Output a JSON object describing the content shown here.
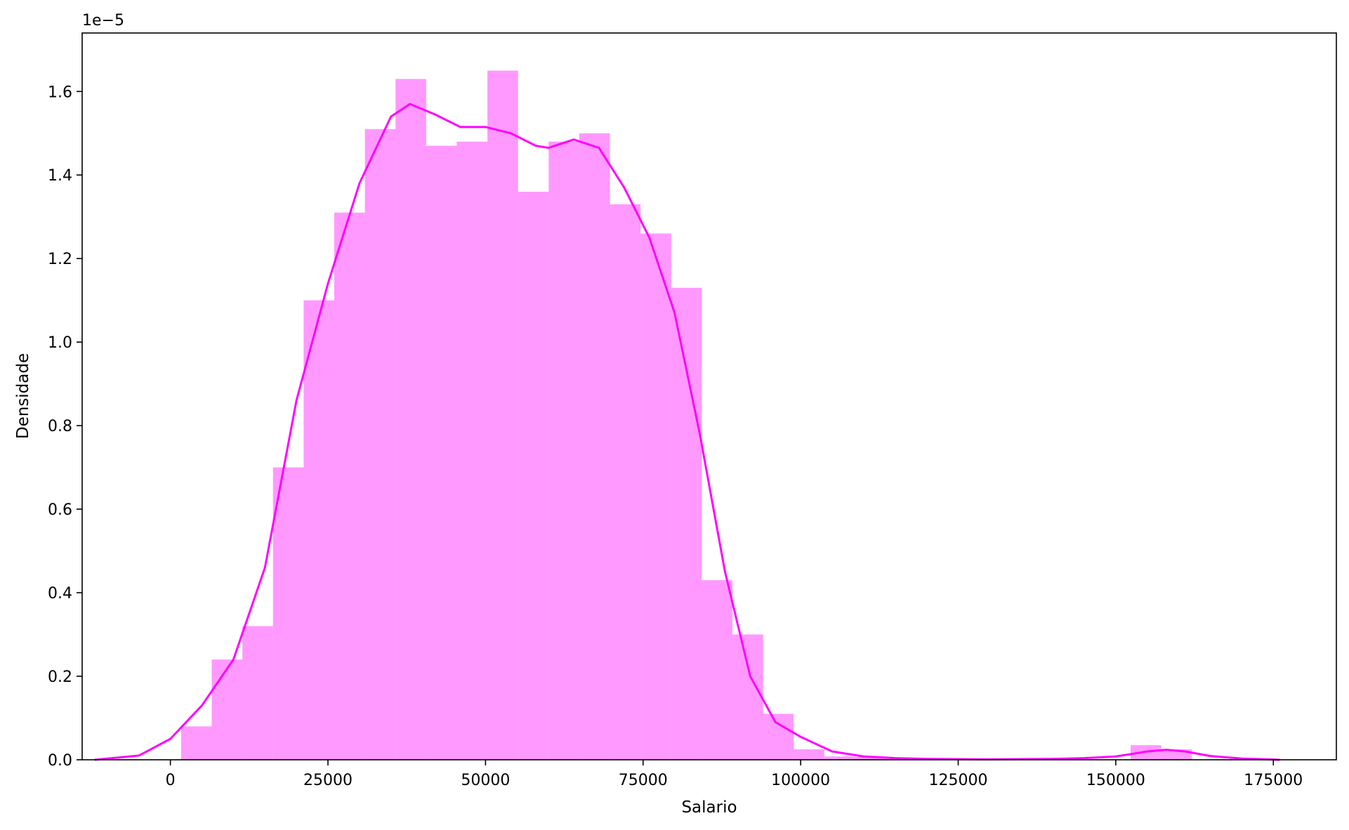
{
  "chart_data": {
    "type": "bar",
    "title": "",
    "xlabel": "Salario",
    "ylabel": "Densidade",
    "scale_label": "1e−5",
    "xlim": [
      -14000,
      185000
    ],
    "ylim": [
      0,
      1.74
    ],
    "xticks": [
      0,
      25000,
      50000,
      75000,
      100000,
      125000,
      150000,
      175000
    ],
    "xtick_labels": [
      "0",
      "25000",
      "50000",
      "75000",
      "100000",
      "125000",
      "150000",
      "175000"
    ],
    "yticks": [
      0.0,
      0.2,
      0.4,
      0.6,
      0.8,
      1.0,
      1.2,
      1.4,
      1.6
    ],
    "ytick_labels": [
      "0.0",
      "0.2",
      "0.4",
      "0.6",
      "0.8",
      "1.0",
      "1.2",
      "1.4",
      "1.6"
    ],
    "grid": false,
    "colors": {
      "bars": "#ff00ff",
      "bar_opacity": 0.4,
      "kde_line": "#ff00ff"
    },
    "histogram": {
      "bin_edges": [
        1700,
        6560,
        11420,
        16280,
        21140,
        26000,
        30860,
        35720,
        40580,
        45440,
        50300,
        55160,
        60020,
        64880,
        69740,
        74600,
        79460,
        84320,
        89180,
        94040,
        98900,
        103760,
        108620,
        113480,
        118340,
        123200,
        128060,
        132920,
        137780,
        142640,
        147500,
        152360,
        157220,
        162080
      ],
      "density": [
        0.08,
        0.24,
        0.32,
        0.7,
        1.1,
        1.31,
        1.51,
        1.63,
        1.47,
        1.48,
        1.65,
        1.36,
        1.48,
        1.5,
        1.33,
        1.26,
        1.13,
        0.43,
        0.3,
        0.11,
        0.025,
        0.008,
        0.007,
        0.004,
        0.0,
        0.0,
        0.0,
        0.0,
        0.0,
        0.0,
        0.0,
        0.035,
        0.025
      ]
    },
    "kde": {
      "x": [
        -12000,
        -5000,
        0,
        5000,
        10000,
        15000,
        20000,
        25000,
        30000,
        35000,
        38000,
        42000,
        46000,
        50000,
        54000,
        58000,
        60000,
        64000,
        68000,
        72000,
        76000,
        80000,
        84000,
        88000,
        92000,
        96000,
        100000,
        105000,
        110000,
        115000,
        120000,
        130000,
        140000,
        145000,
        150000,
        153000,
        155000,
        158000,
        161000,
        165000,
        170000,
        176000
      ],
      "y": [
        0.0,
        0.01,
        0.05,
        0.13,
        0.24,
        0.46,
        0.86,
        1.14,
        1.38,
        1.54,
        1.57,
        1.545,
        1.515,
        1.515,
        1.5,
        1.47,
        1.465,
        1.485,
        1.465,
        1.37,
        1.25,
        1.07,
        0.78,
        0.45,
        0.2,
        0.09,
        0.055,
        0.02,
        0.008,
        0.004,
        0.002,
        0.001,
        0.002,
        0.004,
        0.008,
        0.015,
        0.02,
        0.024,
        0.02,
        0.009,
        0.003,
        0.0
      ]
    }
  }
}
